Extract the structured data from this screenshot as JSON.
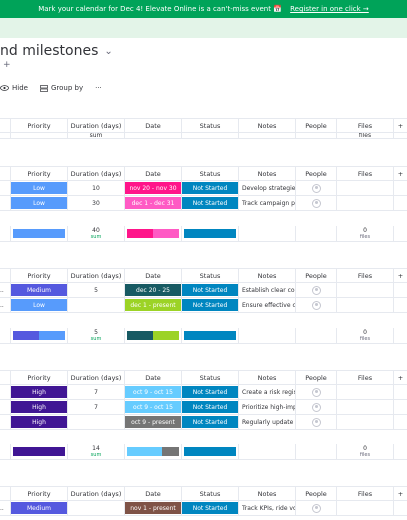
{
  "banner": {
    "text": "Mark your calendar for Dec 4! Elevate Online is a can't-miss event 📅",
    "link": "Register in one click →",
    "bg_color": "#00a359"
  },
  "board": {
    "title": "nd milestones",
    "add_view": "+"
  },
  "toolbar": {
    "hide_label": "Hide",
    "groupby_label": "Group by",
    "more_label": "···"
  },
  "columns": {
    "priority": "Priority",
    "duration": "Duration (days)",
    "date": "Date",
    "status": "Status",
    "notes": "Notes",
    "people": "People",
    "files": "Files",
    "add": "+"
  },
  "top_summary": {
    "files_label": "files",
    "sum_label": "sum"
  },
  "groups": [
    {
      "rows": [
        {
          "priority": "Low",
          "priority_color": "#579bfc",
          "duration": "10",
          "date": "nov 20 - nov 30",
          "date_color": "#ff158a",
          "status": "Not Started",
          "status_color": "#0086c0",
          "notes": "Develop strategies ..."
        },
        {
          "priority": "Low",
          "priority_color": "#579bfc",
          "duration": "30",
          "date": "dec 1 - dec 31",
          "date_color": "#ff5ac4",
          "status": "Not Started",
          "status_color": "#0086c0",
          "notes": "Track campaign per..."
        }
      ],
      "summary": {
        "duration": "40",
        "sum_label": "sum",
        "files": "0",
        "files_label": "files"
      }
    },
    {
      "rows": [
        {
          "left": "..",
          "priority": "Medium",
          "priority_color": "#5559df",
          "duration": "5",
          "date": "dec 20 - 25",
          "date_color": "#175a63",
          "status": "Not Started",
          "status_color": "#0086c0",
          "notes": "Establish clear com..."
        },
        {
          "left": "..",
          "priority": "Low",
          "priority_color": "#579bfc",
          "duration": "",
          "date": "dec 1 - present",
          "date_color": "#9cd326",
          "status": "Not Started",
          "status_color": "#0086c0",
          "notes": "Ensure effective co..."
        }
      ],
      "summary": {
        "duration": "5",
        "sum_label": "sum",
        "files": "0",
        "files_label": "files"
      }
    },
    {
      "rows": [
        {
          "priority": "High",
          "priority_color": "#401694",
          "duration": "7",
          "date": "oct 9 - oct 15",
          "date_color": "#66ccff",
          "status": "Not Started",
          "status_color": "#0086c0",
          "notes": "Create a risk regist..."
        },
        {
          "priority": "High",
          "priority_color": "#401694",
          "duration": "7",
          "date": "oct 9 - oct 15",
          "date_color": "#66ccff",
          "status": "Not Started",
          "status_color": "#0086c0",
          "notes": "Prioritize high-impa..."
        },
        {
          "priority": "High",
          "priority_color": "#401694",
          "duration": "",
          "date": "oct 9 - present",
          "date_color": "#757575",
          "status": "Not Started",
          "status_color": "#0086c0",
          "notes": "Regularly update th..."
        }
      ],
      "summary": {
        "duration": "14",
        "sum_label": "sum",
        "files": "0",
        "files_label": "files"
      }
    },
    {
      "rows": [
        {
          "left": "..",
          "priority": "Medium",
          "priority_color": "#5559df",
          "duration": "",
          "date": "nov 1 - present",
          "date_color": "#7f5347",
          "status": "Not Started",
          "status_color": "#0086c0",
          "notes": "Track KPIs, ride volu..."
        }
      ]
    }
  ]
}
